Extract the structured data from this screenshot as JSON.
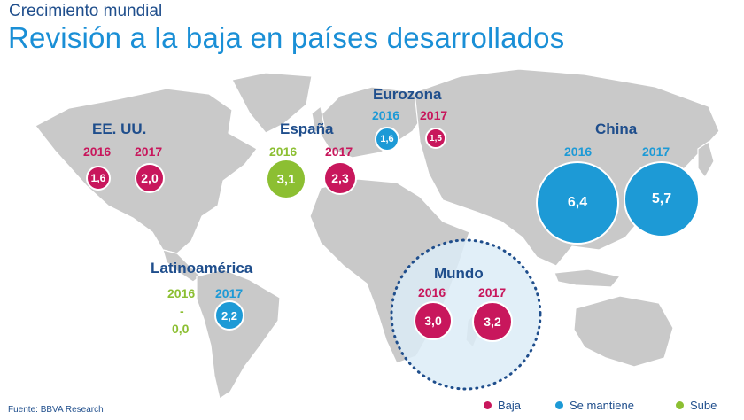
{
  "header": {
    "subtitle": "Crecimiento mundial",
    "title": "Revisión a la baja en países desarrollados"
  },
  "colors": {
    "baja": "#c8175c",
    "se_mantiene": "#1d9ad6",
    "sube": "#8cbf32",
    "region_label": "#1f4e8c",
    "map_land": "#c9c9c9",
    "world_circle_fill": "#dcecf7",
    "world_circle_border": "#1f4e8c"
  },
  "regions": {
    "eeuu": {
      "name": "EE. UU.",
      "years": [
        "2016",
        "2017"
      ],
      "values": [
        "1,6",
        "2,0"
      ],
      "status": [
        "baja",
        "baja"
      ]
    },
    "espana": {
      "name": "España",
      "years": [
        "2016",
        "2017"
      ],
      "values": [
        "3,1",
        "2,3"
      ],
      "status": [
        "sube",
        "baja"
      ]
    },
    "eurozona": {
      "name": "Eurozona",
      "years": [
        "2016",
        "2017"
      ],
      "values": [
        "1,6",
        "1,5"
      ],
      "status": [
        "se_mantiene",
        "baja"
      ]
    },
    "china": {
      "name": "China",
      "years": [
        "2016",
        "2017"
      ],
      "values": [
        "6,4",
        "5,7"
      ],
      "status": [
        "se_mantiene",
        "se_mantiene"
      ]
    },
    "latinoamerica": {
      "name": "Latinoamérica",
      "years": [
        "2016",
        "2017"
      ],
      "values": [
        "0,0",
        "2,2"
      ],
      "status": [
        "sube",
        "se_mantiene"
      ],
      "dash": "-"
    },
    "mundo": {
      "name": "Mundo",
      "years": [
        "2016",
        "2017"
      ],
      "values": [
        "3,0",
        "3,2"
      ],
      "status": [
        "baja",
        "baja"
      ]
    }
  },
  "legend": [
    {
      "label": "Baja",
      "status": "baja"
    },
    {
      "label": "Se mantiene",
      "status": "se_mantiene"
    },
    {
      "label": "Sube",
      "status": "sube"
    }
  ],
  "footer": {
    "source": "Fuente: BBVA Research"
  }
}
